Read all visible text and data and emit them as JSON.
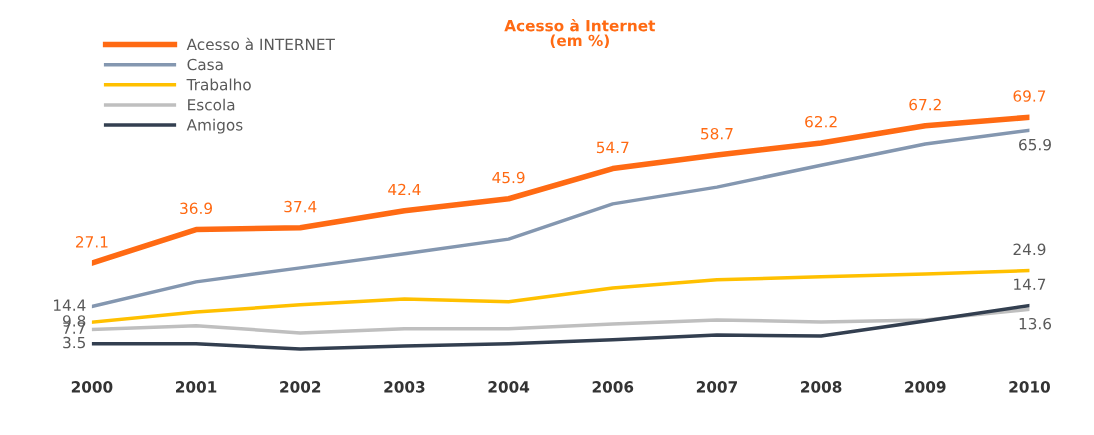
{
  "chart_data": {
    "type": "line",
    "title": "Acesso à Internet\n(em %)",
    "categories": [
      "2000",
      "2001",
      "2002",
      "2003",
      "2004",
      "2006",
      "2007",
      "2008",
      "2009",
      "2010"
    ],
    "series": [
      {
        "name": "Acesso à INTERNET",
        "color": "#ff6a13",
        "values": [
          27.1,
          36.9,
          37.4,
          42.4,
          45.9,
          54.7,
          58.7,
          62.2,
          67.2,
          69.7
        ],
        "value_labels": [
          "27.1",
          "36.9",
          "37.4",
          "42.4",
          "45.9",
          "54.7",
          "58.7",
          "62.2",
          "67.2",
          "69.7"
        ]
      },
      {
        "name": "Casa",
        "color": "#8497b0",
        "values": [
          14.4,
          21.6,
          25.7,
          29.8,
          34.1,
          44.4,
          49.3,
          55.7,
          61.9,
          65.9
        ],
        "value_labels": [
          "14.4",
          null,
          null,
          null,
          null,
          null,
          null,
          null,
          null,
          "65.9"
        ]
      },
      {
        "name": "Trabalho",
        "color": "#ffc000",
        "values": [
          9.8,
          12.8,
          14.9,
          16.6,
          15.8,
          19.8,
          22.2,
          23.1,
          23.9,
          24.9
        ],
        "value_labels": [
          "9.8",
          null,
          null,
          null,
          null,
          null,
          null,
          null,
          null,
          "24.9"
        ]
      },
      {
        "name": "Escola",
        "color": "#bfbfbf",
        "values": [
          7.7,
          8.8,
          6.7,
          7.9,
          7.9,
          9.3,
          10.5,
          9.9,
          10.5,
          13.6
        ],
        "value_labels": [
          "7.7",
          null,
          null,
          null,
          null,
          null,
          null,
          null,
          null,
          "13.6"
        ]
      },
      {
        "name": "Amigos",
        "color": "#333f50",
        "values": [
          3.5,
          3.5,
          2.0,
          2.9,
          3.5,
          4.7,
          6.1,
          5.8,
          10.2,
          14.7
        ],
        "value_labels": [
          "3.5",
          null,
          null,
          null,
          null,
          null,
          null,
          null,
          null,
          "14.7"
        ]
      }
    ],
    "legend": "top left",
    "tick_labels": "x",
    "grid": false
  }
}
